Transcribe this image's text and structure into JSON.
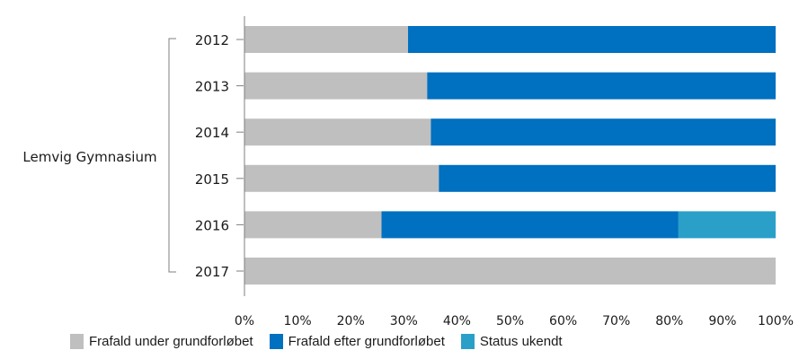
{
  "chart_data": {
    "type": "bar",
    "orientation": "horizontal",
    "stacked": true,
    "group_label": "Lemvig Gymnasium",
    "categories": [
      "2012",
      "2013",
      "2014",
      "2015",
      "2016",
      "2017"
    ],
    "series": [
      {
        "name": "Frafald under grundforløbet",
        "color": "#bfbfbf",
        "values": [
          30.8,
          34.4,
          35.1,
          36.6,
          25.8,
          100
        ]
      },
      {
        "name": "Frafald efter grundforløbet",
        "color": "#0070c0",
        "values": [
          69.2,
          65.6,
          64.9,
          63.4,
          55.9,
          0
        ]
      },
      {
        "name": "Status ukendt",
        "color": "#2aa0c8",
        "values": [
          0,
          0,
          0,
          0,
          18.3,
          0
        ]
      }
    ],
    "xlim": [
      0,
      100
    ],
    "x_ticks": [
      "0%",
      "10%",
      "20%",
      "30%",
      "40%",
      "50%",
      "60%",
      "70%",
      "80%",
      "90%",
      "100%"
    ],
    "grid": false,
    "legend_position": "bottom"
  }
}
